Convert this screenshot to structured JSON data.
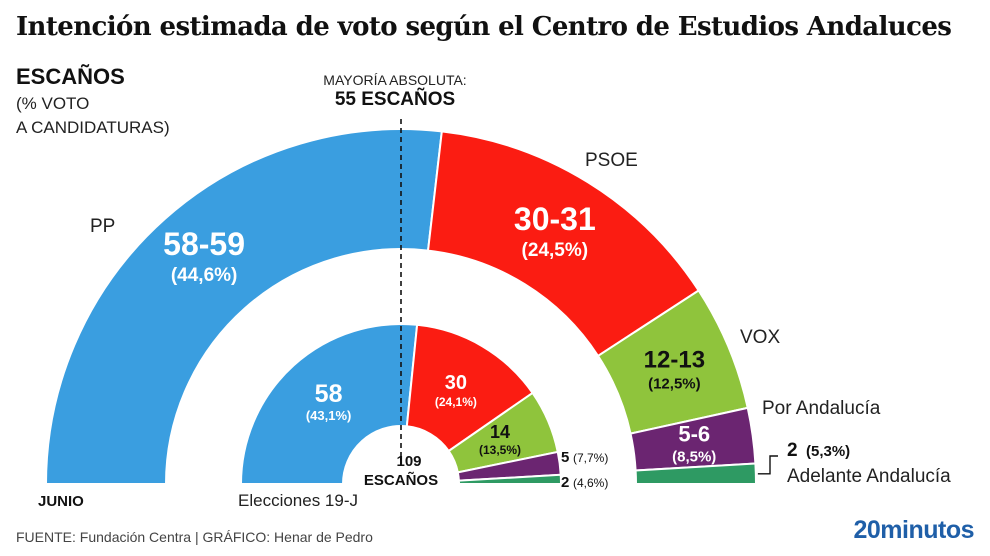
{
  "header": {
    "title": "Intención estimada de voto según el Centro de Estudios Andaluces",
    "escanos": "ESCAÑOS",
    "voto_line1": "(% VOTO",
    "voto_line2": "A CANDIDATURAS)",
    "majority_line1": "MAYORÍA ABSOLUTA:",
    "majority_line2": "55 ESCAÑOS"
  },
  "labels": {
    "outer_ring": "JUNIO",
    "inner_ring": "Elecciones 19-J",
    "center_number": "109",
    "center_text": "ESCAÑOS"
  },
  "footer": {
    "source": "FUENTE: Fundación Centra  |  GRÁFICO: Henar de Pedro",
    "brand": "20minutos"
  },
  "chart_data": [
    {
      "type": "pie",
      "subtype": "parliament-hemicycle",
      "name": "JUNIO",
      "total_seats": 109,
      "majority": 55,
      "series": [
        {
          "party": "PP",
          "seats_label": "58-59",
          "seats": 58.5,
          "vote_pct_label": "(44,6%)",
          "vote_pct": 44.6,
          "color": "#3a9ee0"
        },
        {
          "party": "PSOE",
          "seats_label": "30-31",
          "seats": 30.5,
          "vote_pct_label": "(24,5%)",
          "vote_pct": 24.5,
          "color": "#fb1c12"
        },
        {
          "party": "VOX",
          "seats_label": "12-13",
          "seats": 12.5,
          "vote_pct_label": "(12,5%)",
          "vote_pct": 12.5,
          "color": "#8fc43c"
        },
        {
          "party": "Por Andalucía",
          "seats_label": "5-6",
          "seats": 5.5,
          "vote_pct_label": "(8,5%)",
          "vote_pct": 8.5,
          "color": "#6b2571"
        },
        {
          "party": "Adelante Andalucía",
          "seats_label": "2",
          "seats": 2,
          "vote_pct_label": "(5,3%)",
          "vote_pct": 5.3,
          "color": "#2e9a63"
        }
      ]
    },
    {
      "type": "pie",
      "subtype": "parliament-hemicycle",
      "name": "Elecciones 19-J",
      "total_seats": 109,
      "series": [
        {
          "party": "PP",
          "seats_label": "58",
          "seats": 58,
          "vote_pct_label": "(43,1%)",
          "vote_pct": 43.1,
          "color": "#3a9ee0"
        },
        {
          "party": "PSOE",
          "seats_label": "30",
          "seats": 30,
          "vote_pct_label": "(24,1%)",
          "vote_pct": 24.1,
          "color": "#fb1c12"
        },
        {
          "party": "VOX",
          "seats_label": "14",
          "seats": 14,
          "vote_pct_label": "(13,5%)",
          "vote_pct": 13.5,
          "color": "#8fc43c"
        },
        {
          "party": "Por Andalucía",
          "seats_label": "5",
          "seats": 5,
          "vote_pct_label": "(7,7%)",
          "vote_pct": 7.7,
          "color": "#6b2571"
        },
        {
          "party": "Adelante Andalucía",
          "seats_label": "2",
          "seats": 2,
          "vote_pct_label": "(4,6%)",
          "vote_pct": 4.6,
          "color": "#2e9a63"
        }
      ]
    }
  ]
}
